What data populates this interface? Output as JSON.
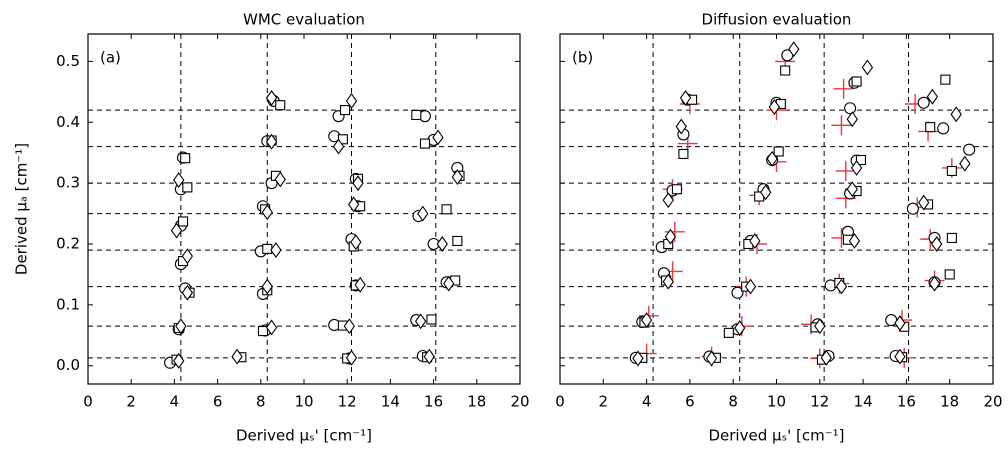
{
  "chart_data": [
    {
      "type": "scatter",
      "title": "WMC evaluation",
      "annotation": "(a)",
      "x_label": "Derived μₛ' [cm⁻¹]",
      "y_label": "Derived μₐ [cm⁻¹]",
      "xlim": [
        0,
        20
      ],
      "ylim": [
        -0.03,
        0.545
      ],
      "xticks": [
        0,
        2,
        4,
        6,
        8,
        10,
        12,
        14,
        16,
        18,
        20
      ],
      "yticks": [
        {
          "value": 0,
          "label": "0.0"
        },
        0.1,
        0.2,
        0.3,
        0.4,
        0.5
      ],
      "vlines": [
        4.3,
        8.3,
        12.2,
        16.1
      ],
      "hlines": [
        0.013,
        0.065,
        0.13,
        0.19,
        0.25,
        0.3,
        0.36,
        0.42
      ],
      "series": [
        {
          "marker": "circle",
          "color": "#000000",
          "x": [
            3.8,
            12.1,
            15.5,
            4.2,
            8.2,
            11.4,
            15.2,
            4.5,
            8.1,
            12.4,
            16.6,
            4.3,
            8.0,
            12.2,
            16.0,
            4.3,
            8.1,
            12.5,
            15.3,
            4.3,
            8.5,
            12.4,
            17.1,
            4.4,
            8.3,
            11.4,
            16.0,
            8.6,
            11.6,
            15.6
          ],
          "y": [
            0.005,
            0.012,
            0.016,
            0.06,
            0.058,
            0.067,
            0.075,
            0.127,
            0.118,
            0.132,
            0.137,
            0.167,
            0.188,
            0.208,
            0.2,
            0.23,
            0.262,
            0.262,
            0.246,
            0.29,
            0.3,
            0.307,
            0.325,
            0.342,
            0.369,
            0.377,
            0.371,
            0.435,
            0.41,
            0.41
          ]
        },
        {
          "marker": "square",
          "color": "#000000",
          "x": [
            4.1,
            7.1,
            12.0,
            15.7,
            4.2,
            8.1,
            11.8,
            15.9,
            4.7,
            8.3,
            12.4,
            17.0,
            4.4,
            8.3,
            12.3,
            17.1,
            4.4,
            8.2,
            12.6,
            16.6,
            4.6,
            8.7,
            12.5,
            17.2,
            4.5,
            8.5,
            11.8,
            15.6,
            8.9,
            11.9,
            15.2
          ],
          "y": [
            0.01,
            0.014,
            0.012,
            0.014,
            0.062,
            0.057,
            0.066,
            0.076,
            0.12,
            0.124,
            0.132,
            0.14,
            0.172,
            0.192,
            0.196,
            0.205,
            0.237,
            0.257,
            0.262,
            0.257,
            0.293,
            0.312,
            0.307,
            0.312,
            0.341,
            0.37,
            0.372,
            0.365,
            0.428,
            0.42,
            0.412
          ]
        },
        {
          "marker": "diamond",
          "color": "#000000",
          "x": [
            4.2,
            6.9,
            12.2,
            15.8,
            4.3,
            8.5,
            12.1,
            15.4,
            4.6,
            8.3,
            12.6,
            16.7,
            4.6,
            8.7,
            12.4,
            16.4,
            4.1,
            8.3,
            12.3,
            15.5,
            4.2,
            8.9,
            12.5,
            17.1,
            8.5,
            11.6,
            16.2,
            8.5,
            12.2
          ],
          "y": [
            0.008,
            0.015,
            0.013,
            0.015,
            0.065,
            0.063,
            0.065,
            0.073,
            0.12,
            0.13,
            0.133,
            0.135,
            0.18,
            0.19,
            0.203,
            0.2,
            0.222,
            0.252,
            0.265,
            0.25,
            0.305,
            0.306,
            0.3,
            0.31,
            0.368,
            0.36,
            0.375,
            0.44,
            0.435
          ]
        }
      ]
    },
    {
      "type": "scatter",
      "title": "Diffusion evaluation",
      "annotation": "(b)",
      "x_label": "Derived μₛ' [cm⁻¹]",
      "xlim": [
        0,
        20
      ],
      "ylim": [
        -0.03,
        0.545
      ],
      "xticks": [
        0,
        2,
        4,
        6,
        8,
        10,
        12,
        14,
        16,
        18,
        20
      ],
      "yticks": [
        0,
        0.1,
        0.2,
        0.3,
        0.4,
        0.5
      ],
      "vlines": [
        4.3,
        8.3,
        12.2,
        16.1
      ],
      "hlines": [
        0.013,
        0.065,
        0.13,
        0.19,
        0.25,
        0.3,
        0.36,
        0.42
      ],
      "series": [
        {
          "marker": "plus",
          "color": "#e8383d",
          "x": [
            4.0,
            7.0,
            12.0,
            15.9,
            4.1,
            8.4,
            11.6,
            15.8,
            5.2,
            8.6,
            12.9,
            17.3,
            5.3,
            9.1,
            13.0,
            17.1,
            5.2,
            9.2,
            13.2,
            16.5,
            5.9,
            10.0,
            13.2,
            18.1,
            6.0,
            10.0,
            13.0,
            17.0,
            10.4,
            13.1,
            16.4
          ],
          "y": [
            0.02,
            0.015,
            0.012,
            0.013,
            0.082,
            0.065,
            0.068,
            0.075,
            0.155,
            0.13,
            0.135,
            0.14,
            0.22,
            0.2,
            0.21,
            0.208,
            0.29,
            0.28,
            0.275,
            0.26,
            0.365,
            0.335,
            0.32,
            0.325,
            0.43,
            0.42,
            0.395,
            0.385,
            0.5,
            0.455,
            0.43
          ]
        },
        {
          "marker": "circle",
          "color": "#000000",
          "x": [
            3.5,
            6.9,
            12.4,
            15.5,
            3.8,
            8.2,
            11.9,
            15.3,
            4.8,
            8.2,
            12.5,
            17.3,
            4.7,
            8.8,
            13.3,
            17.3,
            5.2,
            9.4,
            13.4,
            16.3,
            5.7,
            9.8,
            13.7,
            18.9,
            5.9,
            10.0,
            13.4,
            17.7,
            10.5,
            13.6,
            16.8
          ],
          "y": [
            0.013,
            0.015,
            0.016,
            0.016,
            0.072,
            0.06,
            0.068,
            0.075,
            0.152,
            0.12,
            0.132,
            0.137,
            0.195,
            0.205,
            0.22,
            0.21,
            0.288,
            0.29,
            0.283,
            0.258,
            0.38,
            0.338,
            0.337,
            0.355,
            0.437,
            0.432,
            0.423,
            0.39,
            0.51,
            0.465,
            0.432
          ]
        },
        {
          "marker": "square",
          "color": "#000000",
          "x": [
            3.8,
            7.2,
            12.1,
            15.8,
            3.9,
            7.8,
            11.8,
            15.9,
            4.9,
            8.6,
            12.9,
            18.0,
            5.0,
            8.7,
            13.3,
            18.1,
            5.4,
            9.2,
            13.7,
            17.0,
            5.7,
            10.1,
            13.9,
            18.1,
            6.1,
            10.2,
            13.7,
            17.1,
            10.4,
            17.8
          ],
          "y": [
            0.013,
            0.013,
            0.01,
            0.014,
            0.071,
            0.054,
            0.063,
            0.064,
            0.14,
            0.13,
            0.136,
            0.15,
            0.2,
            0.2,
            0.207,
            0.21,
            0.29,
            0.278,
            0.287,
            0.265,
            0.348,
            0.352,
            0.338,
            0.32,
            0.437,
            0.43,
            0.467,
            0.392,
            0.485,
            0.47
          ]
        },
        {
          "marker": "diamond",
          "color": "#000000",
          "x": [
            3.6,
            7.0,
            12.3,
            15.7,
            4.0,
            8.3,
            12.0,
            15.7,
            5.0,
            8.8,
            13.0,
            17.3,
            5.1,
            9.0,
            13.6,
            17.4,
            5.0,
            9.5,
            13.5,
            16.8,
            5.6,
            9.8,
            13.7,
            18.7,
            5.8,
            9.9,
            13.5,
            18.3,
            10.8,
            14.2,
            17.2
          ],
          "y": [
            0.012,
            0.012,
            0.013,
            0.015,
            0.075,
            0.062,
            0.065,
            0.07,
            0.138,
            0.13,
            0.13,
            0.135,
            0.212,
            0.205,
            0.205,
            0.2,
            0.272,
            0.285,
            0.29,
            0.268,
            0.393,
            0.34,
            0.325,
            0.332,
            0.44,
            0.425,
            0.405,
            0.413,
            0.52,
            0.49,
            0.442
          ]
        }
      ]
    }
  ]
}
